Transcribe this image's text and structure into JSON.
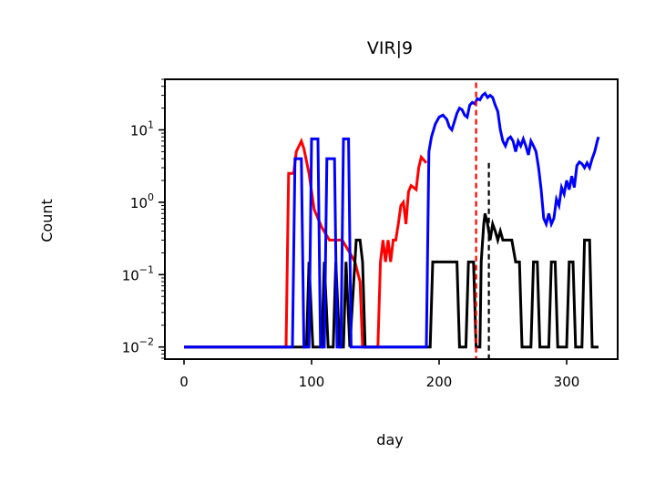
{
  "chart_data": {
    "type": "line",
    "title": "VIR|9",
    "xlabel": "day",
    "ylabel": "Count",
    "xlim": [
      -15,
      340
    ],
    "ylim": [
      0.0068,
      50
    ],
    "yscale": "log",
    "xticks": [
      0,
      100,
      200,
      300
    ],
    "yticks": [
      {
        "value": 0.01,
        "base": "10",
        "exp": "−2"
      },
      {
        "value": 0.1,
        "base": "10",
        "exp": "−1"
      },
      {
        "value": 1,
        "base": "10",
        "exp": "0"
      },
      {
        "value": 10,
        "base": "10",
        "exp": "1"
      }
    ],
    "grid": false,
    "series": [
      {
        "color": "#ff0000",
        "points": [
          [
            0,
            0.01
          ],
          [
            80,
            0.01
          ],
          [
            82,
            2.5
          ],
          [
            86,
            2.5
          ],
          [
            88,
            5
          ],
          [
            92,
            7
          ],
          [
            94,
            5.5
          ],
          [
            98,
            2.5
          ],
          [
            102,
            0.8
          ],
          [
            108,
            0.45
          ],
          [
            114,
            0.3
          ],
          [
            120,
            0.3
          ],
          [
            124,
            0.3
          ],
          [
            130,
            0.2
          ],
          [
            134,
            0.15
          ],
          [
            138,
            0.08
          ],
          [
            140,
            0.01
          ],
          [
            152,
            0.01
          ],
          [
            154,
            0.15
          ],
          [
            156,
            0.3
          ],
          [
            158,
            0.15
          ],
          [
            160,
            0.3
          ],
          [
            162,
            0.15
          ],
          [
            164,
            0.3
          ],
          [
            166,
            0.3
          ],
          [
            168,
            0.5
          ],
          [
            170,
            0.9
          ],
          [
            172,
            1.0
          ],
          [
            174,
            0.5
          ],
          [
            176,
            1.4
          ],
          [
            178,
            1.7
          ],
          [
            182,
            1.5
          ],
          [
            184,
            3.0
          ],
          [
            186,
            4.2
          ],
          [
            190,
            3.5
          ]
        ]
      },
      {
        "color": "#000000",
        "points": [
          [
            0,
            0.01
          ],
          [
            96,
            0.01
          ],
          [
            98,
            0.15
          ],
          [
            101,
            0.01
          ],
          [
            108,
            0.01
          ],
          [
            110,
            0.15
          ],
          [
            113,
            0.01
          ],
          [
            117,
            0.01
          ],
          [
            119,
            0.15
          ],
          [
            122,
            0.01
          ],
          [
            125,
            0.01
          ],
          [
            127,
            0.15
          ],
          [
            130,
            0.01
          ],
          [
            134,
            0.15
          ],
          [
            135,
            0.3
          ],
          [
            138,
            0.3
          ],
          [
            140,
            0.15
          ],
          [
            142,
            0.01
          ],
          [
            193,
            0.01
          ],
          [
            195,
            0.15
          ],
          [
            214,
            0.15
          ],
          [
            216,
            0.01
          ],
          [
            221,
            0.01
          ],
          [
            223,
            0.15
          ],
          [
            227,
            0.15
          ],
          [
            229,
            0.01
          ],
          [
            232,
            0.01
          ],
          [
            233,
            0.15
          ],
          [
            235,
            0.5
          ],
          [
            236,
            0.7
          ],
          [
            238,
            0.5
          ],
          [
            240,
            0.3
          ],
          [
            242,
            0.5
          ],
          [
            244,
            0.4
          ],
          [
            246,
            0.3
          ],
          [
            248,
            0.4
          ],
          [
            250,
            0.3
          ],
          [
            254,
            0.3
          ],
          [
            257,
            0.3
          ],
          [
            260,
            0.15
          ],
          [
            263,
            0.15
          ],
          [
            265,
            0.01
          ],
          [
            272,
            0.01
          ],
          [
            274,
            0.15
          ],
          [
            277,
            0.15
          ],
          [
            279,
            0.01
          ],
          [
            286,
            0.01
          ],
          [
            288,
            0.15
          ],
          [
            291,
            0.15
          ],
          [
            293,
            0.01
          ],
          [
            300,
            0.01
          ],
          [
            302,
            0.15
          ],
          [
            305,
            0.15
          ],
          [
            307,
            0.01
          ],
          [
            312,
            0.01
          ],
          [
            314,
            0.3
          ],
          [
            318,
            0.3
          ],
          [
            320,
            0.01
          ],
          [
            325,
            0.01
          ]
        ]
      },
      {
        "color": "#0000ff",
        "points": [
          [
            0,
            0.01
          ],
          [
            85,
            0.01
          ],
          [
            87,
            4
          ],
          [
            92,
            4
          ],
          [
            94,
            0.01
          ],
          [
            98,
            0.01
          ],
          [
            100,
            7.5
          ],
          [
            105,
            7.5
          ],
          [
            107,
            0.01
          ],
          [
            110,
            0.01
          ],
          [
            112,
            4
          ],
          [
            118,
            4
          ],
          [
            120,
            0.01
          ],
          [
            123,
            0.01
          ],
          [
            125,
            7.5
          ],
          [
            129,
            7.5
          ],
          [
            131,
            0.01
          ],
          [
            190,
            0.01
          ],
          [
            192,
            5
          ],
          [
            194,
            8
          ],
          [
            197,
            12
          ],
          [
            200,
            15
          ],
          [
            203,
            16
          ],
          [
            206,
            14
          ],
          [
            208,
            11
          ],
          [
            210,
            10
          ],
          [
            212,
            13
          ],
          [
            214,
            17
          ],
          [
            216,
            20
          ],
          [
            218,
            19
          ],
          [
            220,
            16
          ],
          [
            222,
            15
          ],
          [
            224,
            22
          ],
          [
            226,
            24
          ],
          [
            228,
            23
          ],
          [
            230,
            27
          ],
          [
            232,
            26
          ],
          [
            234,
            30
          ],
          [
            236,
            32
          ],
          [
            238,
            28
          ],
          [
            240,
            30
          ],
          [
            242,
            28
          ],
          [
            244,
            22
          ],
          [
            246,
            18
          ],
          [
            248,
            10
          ],
          [
            250,
            7
          ],
          [
            252,
            6
          ],
          [
            254,
            7.5
          ],
          [
            256,
            8
          ],
          [
            258,
            7
          ],
          [
            260,
            5
          ],
          [
            262,
            7
          ],
          [
            264,
            6
          ],
          [
            266,
            7.5
          ],
          [
            268,
            6
          ],
          [
            270,
            4.5
          ],
          [
            272,
            7
          ],
          [
            274,
            6
          ],
          [
            276,
            5
          ],
          [
            278,
            3
          ],
          [
            280,
            1.5
          ],
          [
            282,
            0.6
          ],
          [
            284,
            0.5
          ],
          [
            286,
            0.7
          ],
          [
            288,
            0.5
          ],
          [
            290,
            0.6
          ],
          [
            292,
            1.1
          ],
          [
            294,
            0.9
          ],
          [
            296,
            1.6
          ],
          [
            298,
            1.3
          ],
          [
            300,
            2.0
          ],
          [
            302,
            1.5
          ],
          [
            304,
            2.3
          ],
          [
            306,
            1.6
          ],
          [
            308,
            3.2
          ],
          [
            310,
            3.6
          ],
          [
            312,
            3.4
          ],
          [
            314,
            3.0
          ],
          [
            316,
            3.5
          ],
          [
            318,
            3.0
          ],
          [
            320,
            4.0
          ],
          [
            322,
            5.0
          ],
          [
            324,
            7.0
          ],
          [
            325,
            8.0
          ]
        ]
      }
    ],
    "vlines": [
      {
        "x": 229,
        "color": "#ff0000",
        "ytop": 45,
        "ybottom": 0.0068
      },
      {
        "x": 239,
        "color": "#000000",
        "ytop": 3.5,
        "ybottom": 0.0068
      }
    ]
  }
}
